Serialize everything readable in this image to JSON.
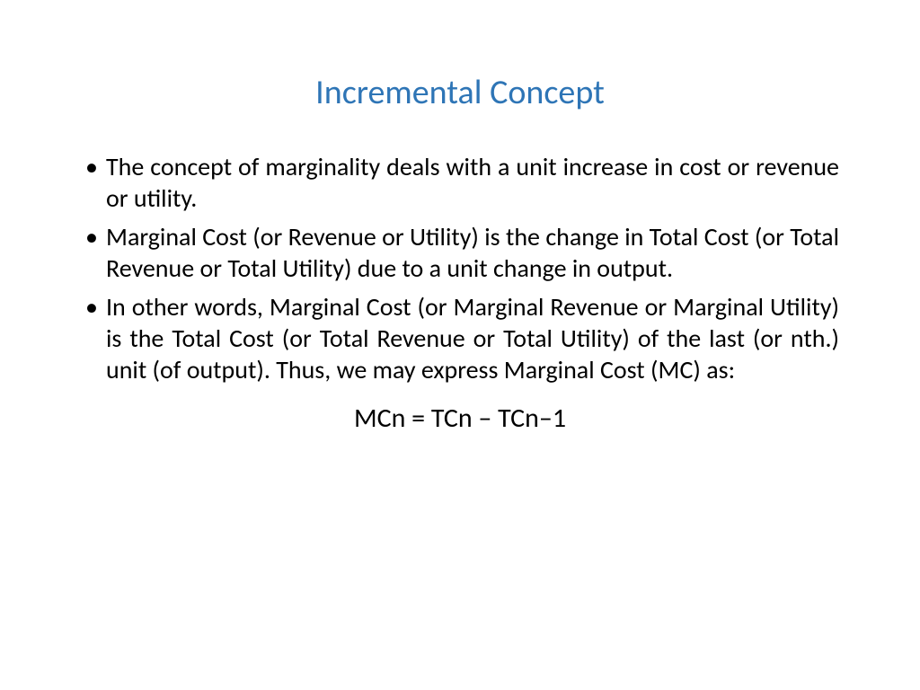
{
  "slide": {
    "title": "Incremental Concept",
    "title_color": "#2e75b6",
    "body_color": "#000000",
    "background_color": "#ffffff",
    "title_fontsize": 38,
    "body_fontsize": 28,
    "formula_fontsize": 30,
    "font_family": "Calibri",
    "bullets": [
      "The concept of marginality deals with a unit increase in cost or revenue or utility.",
      "Marginal Cost (or Revenue or Utility) is the change in Total Cost (or Total Revenue or Total Utility) due to a unit change in output.",
      "In other words, Marginal Cost (or Marginal Revenue or Marginal Utility) is the Total Cost (or Total Revenue or Total Utility) of the last (or nth.) unit (of output). Thus, we may express Marginal Cost (MC) as:"
    ],
    "formula": "MCn = TCn – TCn–1"
  }
}
